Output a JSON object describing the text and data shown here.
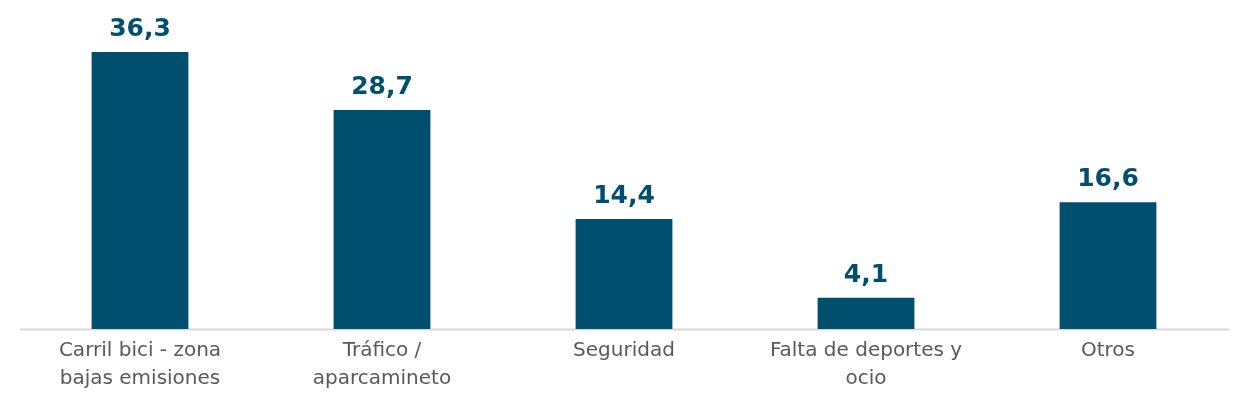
{
  "chart_data": {
    "type": "bar",
    "categories": [
      "Carril bici - zona bajas emisiones",
      "Tráfico / aparcamineto",
      "Seguridad",
      "Falta de deportes y ocio",
      "Otros"
    ],
    "values": [
      36.3,
      28.7,
      14.4,
      4.1,
      16.6
    ],
    "value_labels": [
      "36,3",
      "28,7",
      "14,4",
      "4,1",
      "16,6"
    ],
    "color": "#004f6e",
    "grid": false
  }
}
